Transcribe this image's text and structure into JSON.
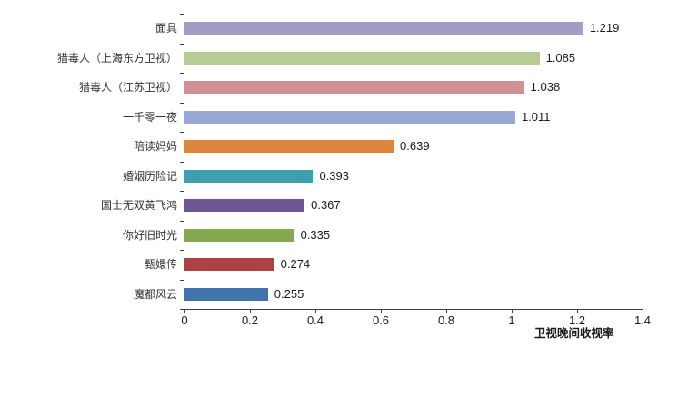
{
  "chart_data": {
    "type": "bar",
    "orientation": "horizontal",
    "title": "",
    "xlabel": "卫视晚间收视率",
    "ylabel": "",
    "xlim": [
      0,
      1.4
    ],
    "grid": false,
    "legend": false,
    "categories": [
      "面具",
      "猎毒人（上海东方卫视）",
      "猎毒人（江苏卫视）",
      "一千零一夜",
      "陪读妈妈",
      "婚姻历险记",
      "国士无双黄飞鸿",
      "你好旧时光",
      "甄嬛传",
      "魔都风云"
    ],
    "values": [
      1.219,
      1.085,
      1.038,
      1.011,
      0.639,
      0.393,
      0.367,
      0.335,
      0.274,
      0.255
    ],
    "value_labels": [
      "1.219",
      "1.085",
      "1.038",
      "1.011",
      "0.639",
      "0.393",
      "0.367",
      "0.335",
      "0.274",
      "0.255"
    ],
    "bar_colors": [
      "#A59CC6",
      "#B8CC96",
      "#D29092",
      "#97A8D4",
      "#DC853F",
      "#3F9FB1",
      "#6F5794",
      "#86A84E",
      "#AB4345",
      "#4273AC"
    ],
    "x_ticks": [
      "0",
      "0.2",
      "0.4",
      "0.6",
      "0.8",
      "1",
      "1.2",
      "1.4"
    ],
    "x_tick_values": [
      0,
      0.2,
      0.4,
      0.6,
      0.8,
      1.0,
      1.2,
      1.4
    ],
    "axis_color": "#404040"
  }
}
